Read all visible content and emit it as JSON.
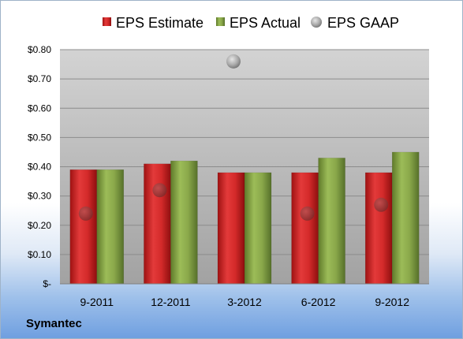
{
  "company": "Symantec",
  "colors": {
    "estimate": "#d42a2a",
    "actual": "#8aa84a",
    "gaap": "#a0a0a0",
    "plot_top": "#cfcfcf",
    "plot_bottom": "#9f9f9f"
  },
  "chart_data": {
    "type": "bar",
    "categories": [
      "9-2011",
      "12-2011",
      "3-2012",
      "6-2012",
      "9-2012"
    ],
    "series": [
      {
        "name": "EPS Estimate",
        "kind": "bar",
        "values": [
          0.39,
          0.41,
          0.38,
          0.38,
          0.38
        ]
      },
      {
        "name": "EPS Actual",
        "kind": "bar",
        "values": [
          0.39,
          0.42,
          0.38,
          0.43,
          0.45
        ]
      },
      {
        "name": "EPS GAAP",
        "kind": "bubble",
        "values": [
          0.24,
          0.32,
          0.76,
          0.24,
          0.27
        ]
      }
    ],
    "yticks": [
      "$-",
      "$0.10",
      "$0.20",
      "$0.30",
      "$0.40",
      "$0.50",
      "$0.60",
      "$0.70",
      "$0.80"
    ],
    "ylim": [
      0,
      0.8
    ],
    "grid": true,
    "legend_position": "top"
  }
}
